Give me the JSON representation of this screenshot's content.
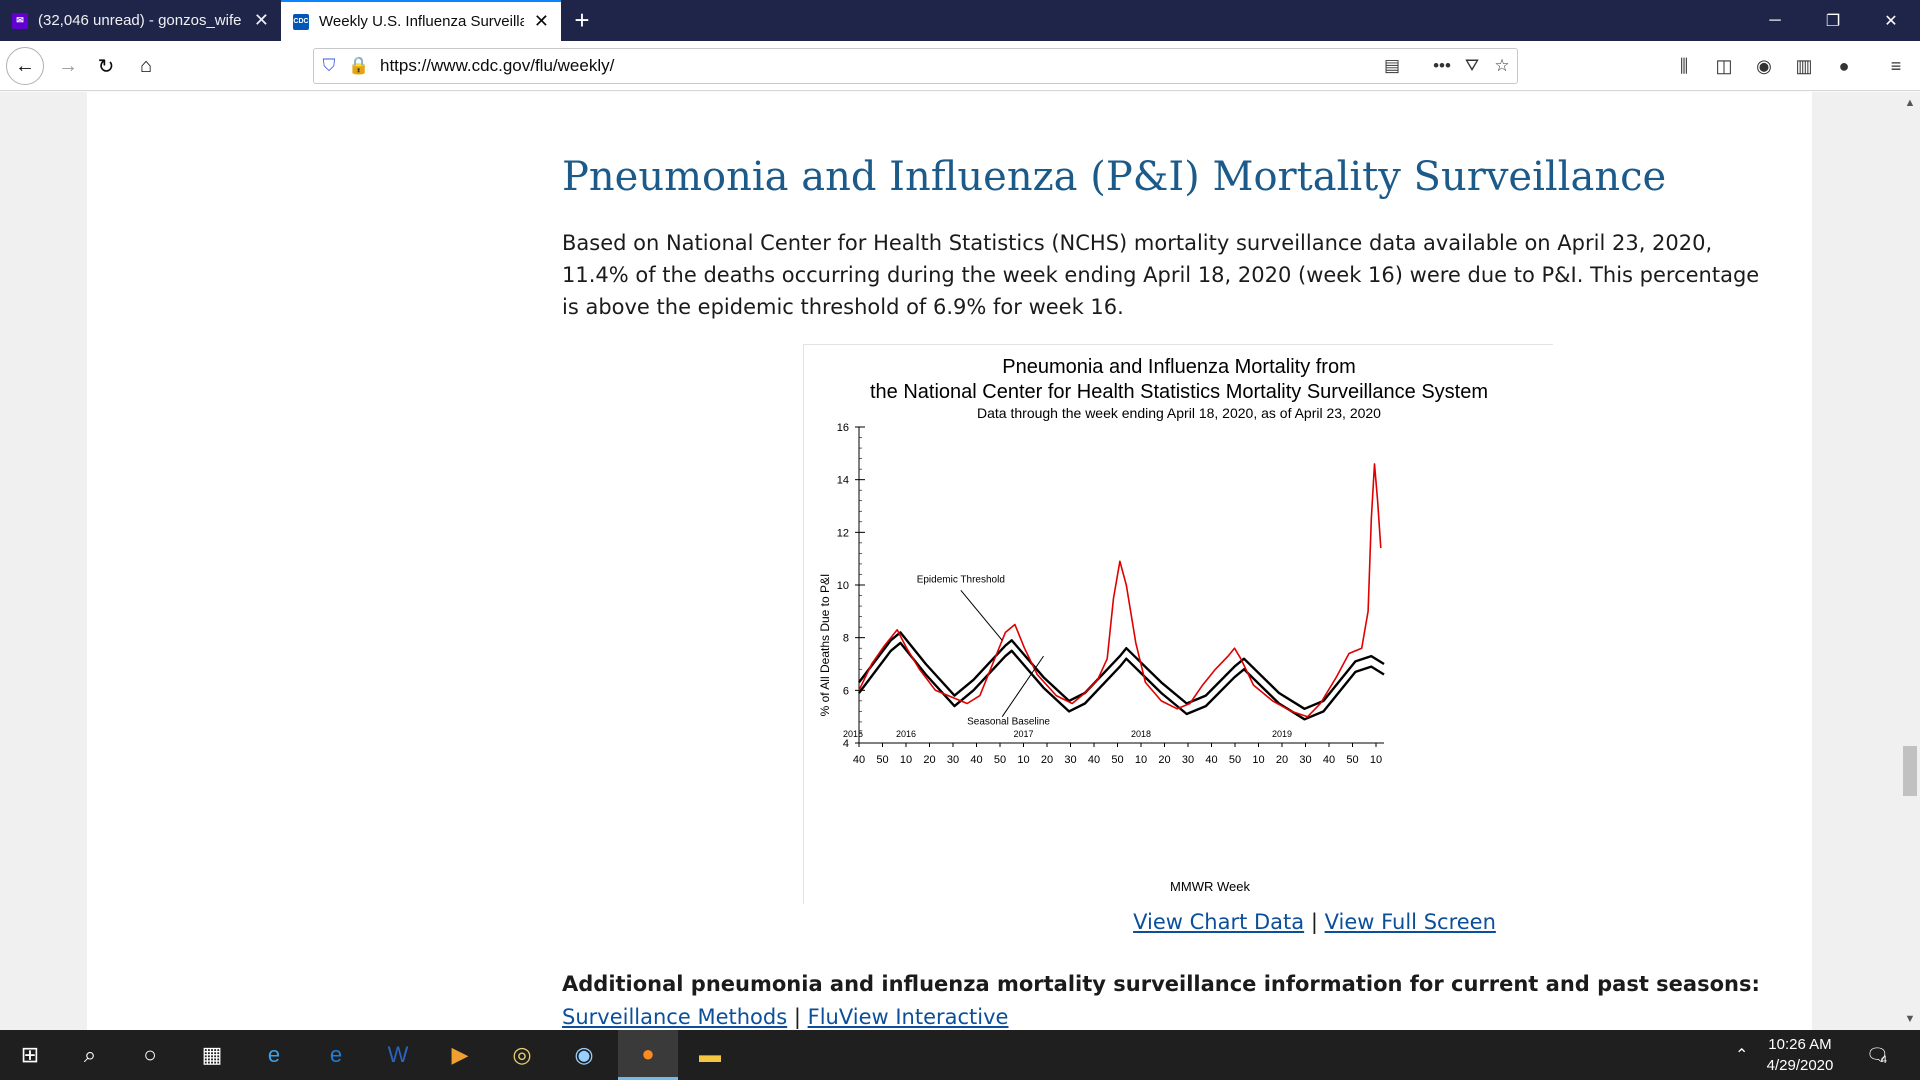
{
  "browser": {
    "tabs": [
      {
        "title": "(32,046 unread) - gonzos_wife",
        "favicon": "yahoo-mail-icon",
        "active": false
      },
      {
        "title": "Weekly U.S. Influenza Surveillance",
        "favicon": "cdc-icon",
        "active": true
      }
    ],
    "url": "https://www.cdc.gov/flu/weekly/"
  },
  "page": {
    "title": "Pneumonia and Influenza (P&I) Mortality Surveillance",
    "lead": "Based on National Center for Health Statistics (NCHS) mortality surveillance data available on April 23, 2020, 11.4% of the deaths occurring during the week ending April 18, 2020 (week 16) were due to P&I. This percentage is above the epidemic threshold of 6.9% for week 16.",
    "links": {
      "chart_data": "View Chart Data",
      "separator": "|",
      "full_screen": "View Full Screen"
    },
    "additional_heading": "Additional pneumonia and influenza mortality surveillance information for current and past seasons:",
    "bottom_links": {
      "methods": "Surveillance Methods",
      "separator": "|",
      "fluview": "FluView Interactive"
    }
  },
  "chart_data": {
    "type": "line",
    "title_line1": "Pneumonia and Influenza Mortality from",
    "title_line2": "the National Center for Health Statistics Mortality Surveillance System",
    "subtitle": "Data through the week ending April 18, 2020, as of April 23, 2020",
    "ylabel": "% of All Deaths Due to P&I",
    "xlabel": "MMWR Week",
    "ylim": [
      4,
      16
    ],
    "yticks": [
      4,
      6,
      8,
      10,
      12,
      14,
      16
    ],
    "xtick_labels": [
      "40",
      "50",
      "10",
      "20",
      "30",
      "40",
      "50",
      "10",
      "20",
      "30",
      "40",
      "50",
      "10",
      "20",
      "30",
      "40",
      "50",
      "10",
      "20",
      "30",
      "40",
      "50",
      "10"
    ],
    "year_labels": [
      "2015",
      "2016",
      "2017",
      "2018",
      "2019"
    ],
    "annotations": [
      "Epidemic Threshold",
      "Seasonal Baseline"
    ],
    "series": [
      {
        "name": "Epidemic Threshold",
        "color": "#000000",
        "points": [
          [
            0,
            6.3
          ],
          [
            10,
            7.9
          ],
          [
            13,
            8.2
          ],
          [
            21,
            7.0
          ],
          [
            30,
            5.8
          ],
          [
            36,
            6.4
          ],
          [
            46,
            7.7
          ],
          [
            48,
            7.9
          ],
          [
            58,
            6.5
          ],
          [
            66,
            5.6
          ],
          [
            71,
            5.9
          ],
          [
            82,
            7.3
          ],
          [
            84,
            7.6
          ],
          [
            95,
            6.3
          ],
          [
            103,
            5.5
          ],
          [
            109,
            5.8
          ],
          [
            118,
            6.9
          ],
          [
            121,
            7.2
          ],
          [
            132,
            5.9
          ],
          [
            140,
            5.3
          ],
          [
            146,
            5.6
          ],
          [
            156,
            7.1
          ],
          [
            161,
            7.3
          ],
          [
            165,
            7.0
          ]
        ]
      },
      {
        "name": "Seasonal Baseline",
        "color": "#000000",
        "points": [
          [
            0,
            5.9
          ],
          [
            10,
            7.5
          ],
          [
            13,
            7.8
          ],
          [
            21,
            6.6
          ],
          [
            30,
            5.4
          ],
          [
            36,
            6.0
          ],
          [
            46,
            7.3
          ],
          [
            48,
            7.5
          ],
          [
            58,
            6.1
          ],
          [
            66,
            5.2
          ],
          [
            71,
            5.5
          ],
          [
            82,
            6.9
          ],
          [
            84,
            7.2
          ],
          [
            95,
            5.9
          ],
          [
            103,
            5.1
          ],
          [
            109,
            5.4
          ],
          [
            118,
            6.5
          ],
          [
            121,
            6.8
          ],
          [
            132,
            5.5
          ],
          [
            140,
            4.9
          ],
          [
            146,
            5.2
          ],
          [
            156,
            6.7
          ],
          [
            161,
            6.9
          ],
          [
            165,
            6.6
          ]
        ]
      },
      {
        "name": "P&I",
        "color": "#e00000",
        "points": [
          [
            0,
            6.0
          ],
          [
            4,
            7.0
          ],
          [
            8,
            7.7
          ],
          [
            12,
            8.3
          ],
          [
            15,
            7.6
          ],
          [
            19,
            6.8
          ],
          [
            24,
            6.0
          ],
          [
            30,
            5.7
          ],
          [
            34,
            5.5
          ],
          [
            38,
            5.8
          ],
          [
            42,
            7.0
          ],
          [
            46,
            8.2
          ],
          [
            49,
            8.5
          ],
          [
            52,
            7.6
          ],
          [
            56,
            6.6
          ],
          [
            62,
            5.8
          ],
          [
            67,
            5.5
          ],
          [
            71,
            5.9
          ],
          [
            75,
            6.4
          ],
          [
            78,
            7.2
          ],
          [
            80,
            9.5
          ],
          [
            82,
            10.9
          ],
          [
            84,
            10.0
          ],
          [
            87,
            7.8
          ],
          [
            90,
            6.3
          ],
          [
            95,
            5.6
          ],
          [
            100,
            5.3
          ],
          [
            104,
            5.5
          ],
          [
            108,
            6.2
          ],
          [
            112,
            6.8
          ],
          [
            116,
            7.3
          ],
          [
            118,
            7.6
          ],
          [
            120,
            7.2
          ],
          [
            124,
            6.2
          ],
          [
            130,
            5.6
          ],
          [
            136,
            5.2
          ],
          [
            141,
            5.0
          ],
          [
            145,
            5.5
          ],
          [
            150,
            6.5
          ],
          [
            154,
            7.4
          ],
          [
            158,
            7.6
          ],
          [
            160,
            9.0
          ],
          [
            161,
            12.5
          ],
          [
            162,
            14.6
          ],
          [
            163,
            13.2
          ],
          [
            164,
            11.4
          ]
        ]
      }
    ]
  },
  "taskbar": {
    "time": "10:26 AM",
    "date": "4/29/2020",
    "notifications": "4"
  }
}
